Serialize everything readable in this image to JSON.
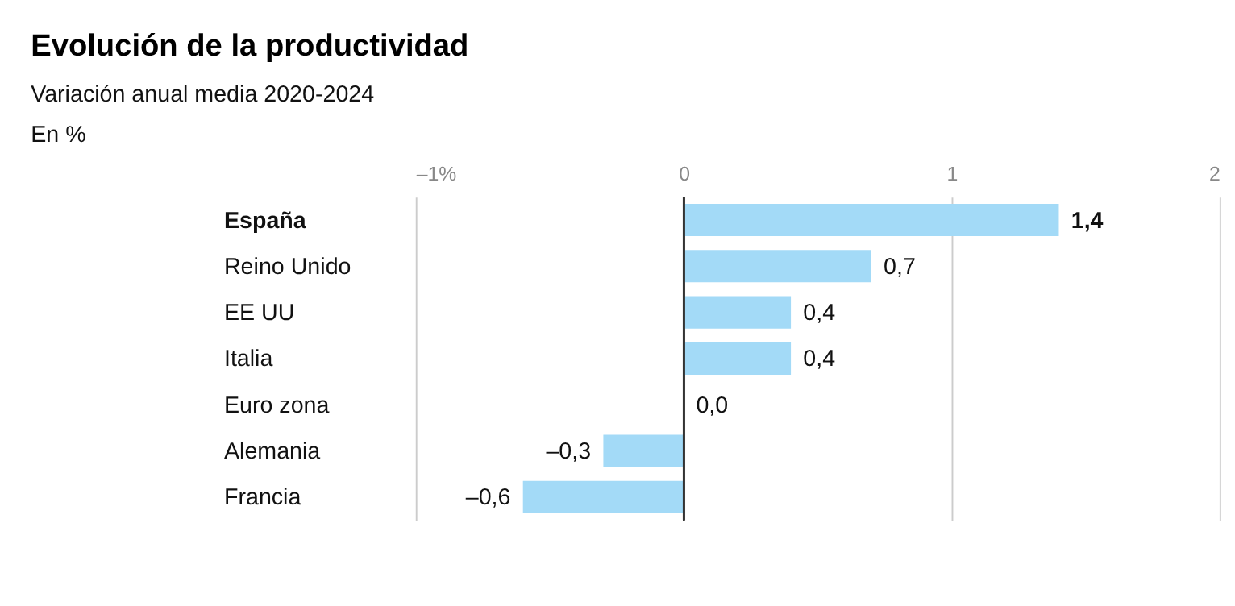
{
  "chart_data": {
    "type": "bar",
    "orientation": "horizontal",
    "title": "Evolución de la productividad",
    "subtitle": "Variación anual media 2020-2024",
    "annotations": [
      "En %"
    ],
    "categories": [
      "España",
      "Reino Unido",
      "EE UU",
      "Italia",
      "Euro zona",
      "Alemania",
      "Francia"
    ],
    "values": [
      1.4,
      0.7,
      0.4,
      0.4,
      0.0,
      -0.3,
      -0.6
    ],
    "value_labels": [
      "1,4",
      "0,7",
      "0,4",
      "0,4",
      "0,0",
      "–0,3",
      "–0,6"
    ],
    "color": "#a3daf7",
    "xlim": [
      -1,
      2
    ],
    "xticks": [
      {
        "value": -1,
        "label": "–1%"
      },
      0,
      1,
      2
    ],
    "grid": "x"
  }
}
